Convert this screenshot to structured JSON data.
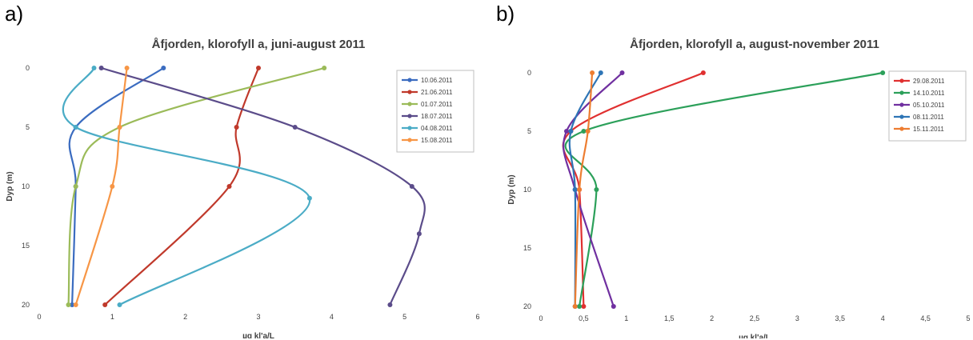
{
  "panels": {
    "a": "a)",
    "b": "b)"
  },
  "chart_data": [
    {
      "type": "line",
      "title": "Åfjorden, klorofyll a, juni-august 2011",
      "xlabel": "µg kl'a/L",
      "ylabel": "Dyp (m)",
      "xlim": [
        0,
        6
      ],
      "ylim": [
        0,
        20
      ],
      "y_inverted": true,
      "xticks": [
        "0",
        "1",
        "2",
        "3",
        "4",
        "5",
        "6"
      ],
      "yticks": [
        "0",
        "5",
        "10",
        "15",
        "20"
      ],
      "legend_position": "top-right",
      "series": [
        {
          "name": "10.06.2011",
          "color": "#3b6cc0",
          "x": [
            1.7,
            0.5,
            0.5,
            0.45
          ],
          "y": [
            0,
            5,
            10,
            20
          ]
        },
        {
          "name": "21.06.2011",
          "color": "#c0392b",
          "x": [
            3.0,
            2.7,
            2.6,
            0.9
          ],
          "y": [
            0,
            5,
            10,
            20
          ]
        },
        {
          "name": "01.07.2011",
          "color": "#9bbb59",
          "x": [
            3.9,
            1.1,
            0.5,
            0.4
          ],
          "y": [
            0,
            5,
            10,
            20
          ]
        },
        {
          "name": "18.07.2011",
          "color": "#5b4c8a",
          "x": [
            0.85,
            3.5,
            5.1,
            5.2,
            4.8
          ],
          "y": [
            0,
            5,
            10,
            14,
            20
          ]
        },
        {
          "name": "04.08.2011",
          "color": "#4bacc6",
          "x": [
            0.75,
            0.5,
            3.7,
            1.1
          ],
          "y": [
            0,
            5,
            11,
            20
          ]
        },
        {
          "name": "15.08.2011",
          "color": "#f79646",
          "x": [
            1.2,
            1.1,
            1.0,
            0.5
          ],
          "y": [
            0,
            5,
            10,
            20
          ]
        }
      ]
    },
    {
      "type": "line",
      "title": "Åfjorden, klorofyll a, august-november 2011",
      "xlabel": "µg kl'a/L",
      "ylabel": "Dyp (m)",
      "xlim": [
        0,
        5
      ],
      "ylim": [
        0,
        20
      ],
      "y_inverted": true,
      "xticks": [
        "0",
        "0,5",
        "1",
        "1,5",
        "2",
        "2,5",
        "3",
        "3,5",
        "4",
        "4,5",
        "5"
      ],
      "yticks": [
        "0",
        "5",
        "10",
        "15",
        "20"
      ],
      "legend_position": "top-right",
      "series": [
        {
          "name": "29.08.2011",
          "color": "#e03030",
          "x": [
            1.9,
            0.35,
            0.45,
            0.5
          ],
          "y": [
            0,
            5,
            10,
            20
          ]
        },
        {
          "name": "14.10.2011",
          "color": "#2ca05a",
          "x": [
            4.0,
            0.5,
            0.65,
            0.45
          ],
          "y": [
            0,
            5,
            10,
            20
          ]
        },
        {
          "name": "05.10.2011",
          "color": "#7030a0",
          "x": [
            0.95,
            0.3,
            0.4,
            0.85
          ],
          "y": [
            0,
            5,
            10,
            20
          ]
        },
        {
          "name": "08.11.2011",
          "color": "#2e75b6",
          "x": [
            0.7,
            0.35,
            0.4,
            0.4
          ],
          "y": [
            0,
            5,
            10,
            20
          ]
        },
        {
          "name": "15.11.2011",
          "color": "#ed7d31",
          "x": [
            0.6,
            0.55,
            0.45,
            0.4
          ],
          "y": [
            0,
            5,
            10,
            20
          ]
        }
      ]
    }
  ]
}
